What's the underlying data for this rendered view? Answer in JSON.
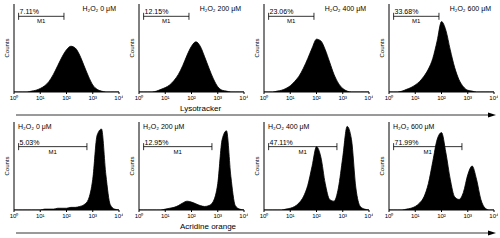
{
  "chart_data": [
    {
      "type": "area",
      "title": "H₂O₂ 0 μM",
      "x_label": "Lysotracker",
      "y_label": "Counts",
      "color": "#000000",
      "x": [
        1,
        1.468,
        2.154,
        3.162,
        4.642,
        6.813,
        10,
        14.68,
        21.54,
        31.62,
        46.42,
        68.13,
        100,
        146.8,
        215.4,
        316.2,
        464.2,
        681.3,
        1000,
        1468,
        2154,
        3162,
        4642,
        6813,
        10000
      ],
      "values": [
        0,
        0,
        0,
        0,
        1,
        2,
        4,
        7,
        12,
        20,
        30,
        40,
        48,
        52,
        50,
        42,
        30,
        18,
        8,
        3,
        1,
        0,
        0,
        0,
        0
      ],
      "xlim": [
        1,
        10000
      ],
      "xticks": [
        {
          "value": 1,
          "label": "10⁰"
        },
        {
          "value": 10,
          "label": "10¹"
        },
        {
          "value": 100,
          "label": "10²"
        },
        {
          "value": 1000,
          "label": "10³"
        },
        {
          "value": 10000,
          "label": "10⁴"
        }
      ],
      "ylim": [
        0,
        100
      ],
      "yticks": [
        0,
        100
      ],
      "tick_labels": "x",
      "gate": {
        "name": "M1",
        "text": "7.11%",
        "range": [
          1.5,
          80
        ]
      }
    },
    {
      "type": "area",
      "title": "H₂O₂ 200 μM",
      "x_label": "Lysotracker",
      "y_label": "Counts",
      "color": "#000000",
      "x": [
        1,
        1.468,
        2.154,
        3.162,
        4.642,
        6.813,
        10,
        14.68,
        21.54,
        31.62,
        46.42,
        68.13,
        100,
        146.8,
        215.4,
        316.2,
        464.2,
        681.3,
        1000,
        1468,
        2154,
        3162,
        4642,
        6813,
        10000
      ],
      "values": [
        0,
        0,
        0,
        0,
        1,
        3,
        5,
        8,
        13,
        20,
        30,
        42,
        52,
        57,
        52,
        40,
        27,
        15,
        6,
        2,
        1,
        0,
        0,
        0,
        0
      ],
      "xlim": [
        1,
        10000
      ],
      "xticks": [
        {
          "value": 1,
          "label": "10⁰"
        },
        {
          "value": 10,
          "label": "10¹"
        },
        {
          "value": 100,
          "label": "10²"
        },
        {
          "value": 1000,
          "label": "10³"
        },
        {
          "value": 10000,
          "label": "10⁴"
        }
      ],
      "ylim": [
        0,
        100
      ],
      "yticks": [
        0,
        100
      ],
      "tick_labels": "x",
      "gate": {
        "name": "M1",
        "text": "12.15%",
        "range": [
          1.5,
          80
        ]
      }
    },
    {
      "type": "area",
      "title": "H₂O₂ 400 μM",
      "x_label": "Lysotracker",
      "y_label": "Counts",
      "color": "#000000",
      "x": [
        1,
        1.468,
        2.154,
        3.162,
        4.642,
        6.813,
        10,
        14.68,
        21.54,
        31.62,
        46.42,
        68.13,
        100,
        146.8,
        215.4,
        316.2,
        464.2,
        681.3,
        1000,
        1468,
        2154,
        3162,
        4642,
        6813,
        10000
      ],
      "values": [
        0,
        0,
        0,
        1,
        2,
        4,
        7,
        12,
        18,
        27,
        38,
        50,
        60,
        58,
        48,
        34,
        20,
        10,
        4,
        1,
        0,
        0,
        0,
        0,
        0
      ],
      "xlim": [
        1,
        10000
      ],
      "xticks": [
        {
          "value": 1,
          "label": "10⁰"
        },
        {
          "value": 10,
          "label": "10¹"
        },
        {
          "value": 100,
          "label": "10²"
        },
        {
          "value": 1000,
          "label": "10³"
        },
        {
          "value": 10000,
          "label": "10⁴"
        }
      ],
      "ylim": [
        0,
        100
      ],
      "yticks": [
        0,
        100
      ],
      "tick_labels": "x",
      "gate": {
        "name": "M1",
        "text": "23.06%",
        "range": [
          1.5,
          80
        ]
      }
    },
    {
      "type": "area",
      "title": "H₂O₂ 600 μM",
      "x_label": "Lysotracker",
      "y_label": "Counts",
      "color": "#000000",
      "x": [
        1,
        1.468,
        2.154,
        3.162,
        4.642,
        6.813,
        10,
        14.68,
        21.54,
        31.62,
        46.42,
        68.13,
        100,
        146.8,
        215.4,
        316.2,
        464.2,
        681.3,
        1000,
        1468,
        2154,
        3162,
        4642,
        6813,
        10000
      ],
      "values": [
        0,
        0,
        0,
        1,
        3,
        5,
        8,
        12,
        18,
        26,
        38,
        58,
        80,
        70,
        48,
        28,
        14,
        6,
        2,
        1,
        0,
        0,
        0,
        0,
        0
      ],
      "xlim": [
        1,
        10000
      ],
      "xticks": [
        {
          "value": 1,
          "label": "10⁰"
        },
        {
          "value": 10,
          "label": "10¹"
        },
        {
          "value": 100,
          "label": "10²"
        },
        {
          "value": 1000,
          "label": "10³"
        },
        {
          "value": 10000,
          "label": "10⁴"
        }
      ],
      "ylim": [
        0,
        100
      ],
      "yticks": [
        0,
        100
      ],
      "tick_labels": "x",
      "gate": {
        "name": "M1",
        "text": "33.68%",
        "range": [
          1.5,
          80
        ]
      }
    },
    {
      "type": "area",
      "title": "H₂O₂ 0 μM",
      "x_label": "Acridine orange",
      "y_label": "Counts",
      "color": "#000000",
      "x": [
        1,
        1.468,
        2.154,
        3.162,
        4.642,
        6.813,
        10,
        14.68,
        21.54,
        31.62,
        46.42,
        68.13,
        100,
        146.8,
        215.4,
        316.2,
        464.2,
        681.3,
        1000,
        1468,
        2154,
        3162,
        4642,
        6813,
        10000
      ],
      "values": [
        0,
        0,
        0,
        0,
        0,
        0,
        0,
        1,
        1,
        1,
        2,
        2,
        2,
        3,
        3,
        4,
        6,
        12,
        35,
        85,
        92,
        40,
        6,
        1,
        0
      ],
      "xlim": [
        1,
        10000
      ],
      "xticks": [
        {
          "value": 1,
          "label": "10⁰"
        },
        {
          "value": 10,
          "label": "10¹"
        },
        {
          "value": 100,
          "label": "10²"
        },
        {
          "value": 1000,
          "label": "10³"
        },
        {
          "value": 10000,
          "label": "10⁴"
        }
      ],
      "ylim": [
        0,
        100
      ],
      "yticks": [
        0,
        100
      ],
      "tick_labels": "x",
      "gate": {
        "name": "M1",
        "text": "5.03%",
        "range": [
          1.5,
          600
        ]
      }
    },
    {
      "type": "area",
      "title": "H₂O₂ 200 μM",
      "x_label": "Acridine orange",
      "y_label": "Counts",
      "color": "#000000",
      "x": [
        1,
        1.468,
        2.154,
        3.162,
        4.642,
        6.813,
        10,
        14.68,
        21.54,
        31.62,
        46.42,
        68.13,
        100,
        146.8,
        215.4,
        316.2,
        464.2,
        681.3,
        1000,
        1468,
        2154,
        3162,
        4642,
        6813,
        10000
      ],
      "values": [
        0,
        0,
        0,
        0,
        0,
        0,
        1,
        2,
        3,
        5,
        8,
        10,
        9,
        7,
        5,
        4,
        5,
        10,
        30,
        80,
        90,
        38,
        5,
        1,
        0
      ],
      "xlim": [
        1,
        10000
      ],
      "xticks": [
        {
          "value": 1,
          "label": "10⁰"
        },
        {
          "value": 10,
          "label": "10¹"
        },
        {
          "value": 100,
          "label": "10²"
        },
        {
          "value": 1000,
          "label": "10³"
        },
        {
          "value": 10000,
          "label": "10⁴"
        }
      ],
      "ylim": [
        0,
        100
      ],
      "yticks": [
        0,
        100
      ],
      "tick_labels": "x",
      "gate": {
        "name": "M1",
        "text": "12.95%",
        "range": [
          1.5,
          600
        ]
      }
    },
    {
      "type": "area",
      "title": "H₂O₂ 400 μM",
      "x_label": "Acridine orange",
      "y_label": "Counts",
      "color": "#000000",
      "x": [
        1,
        1.468,
        2.154,
        3.162,
        4.642,
        6.813,
        10,
        14.68,
        21.54,
        31.62,
        46.42,
        68.13,
        100,
        146.8,
        215.4,
        316.2,
        464.2,
        681.3,
        1000,
        1468,
        2154,
        3162,
        4642,
        6813,
        10000
      ],
      "values": [
        0,
        0,
        0,
        0,
        0,
        1,
        2,
        4,
        8,
        15,
        28,
        50,
        72,
        60,
        30,
        12,
        10,
        25,
        60,
        95,
        80,
        25,
        4,
        1,
        0
      ],
      "xlim": [
        1,
        10000
      ],
      "xticks": [
        {
          "value": 1,
          "label": "10⁰"
        },
        {
          "value": 10,
          "label": "10¹"
        },
        {
          "value": 100,
          "label": "10²"
        },
        {
          "value": 1000,
          "label": "10³"
        },
        {
          "value": 10000,
          "label": "10⁴"
        }
      ],
      "ylim": [
        0,
        100
      ],
      "yticks": [
        0,
        100
      ],
      "tick_labels": "x",
      "gate": {
        "name": "M1",
        "text": "47.11%",
        "range": [
          1.5,
          600
        ]
      }
    },
    {
      "type": "area",
      "title": "H₂O₂ 600 μM",
      "x_label": "Acridine orange",
      "y_label": "Counts",
      "color": "#000000",
      "x": [
        1,
        1.468,
        2.154,
        3.162,
        4.642,
        6.813,
        10,
        14.68,
        21.54,
        31.62,
        46.42,
        68.13,
        100,
        146.8,
        215.4,
        316.2,
        464.2,
        681.3,
        1000,
        1468,
        2154,
        3162,
        4642,
        6813,
        10000
      ],
      "values": [
        0,
        0,
        0,
        0,
        1,
        2,
        4,
        8,
        15,
        30,
        55,
        80,
        88,
        65,
        35,
        15,
        12,
        20,
        40,
        50,
        35,
        12,
        2,
        0,
        0
      ],
      "xlim": [
        1,
        10000
      ],
      "xticks": [
        {
          "value": 1,
          "label": "10⁰"
        },
        {
          "value": 10,
          "label": "10¹"
        },
        {
          "value": 100,
          "label": "10²"
        },
        {
          "value": 1000,
          "label": "10³"
        },
        {
          "value": 10000,
          "label": "10⁴"
        }
      ],
      "ylim": [
        0,
        100
      ],
      "yticks": [
        0,
        100
      ],
      "tick_labels": "x",
      "gate": {
        "name": "M1",
        "text": "71.99%",
        "range": [
          1.5,
          600
        ]
      }
    }
  ]
}
